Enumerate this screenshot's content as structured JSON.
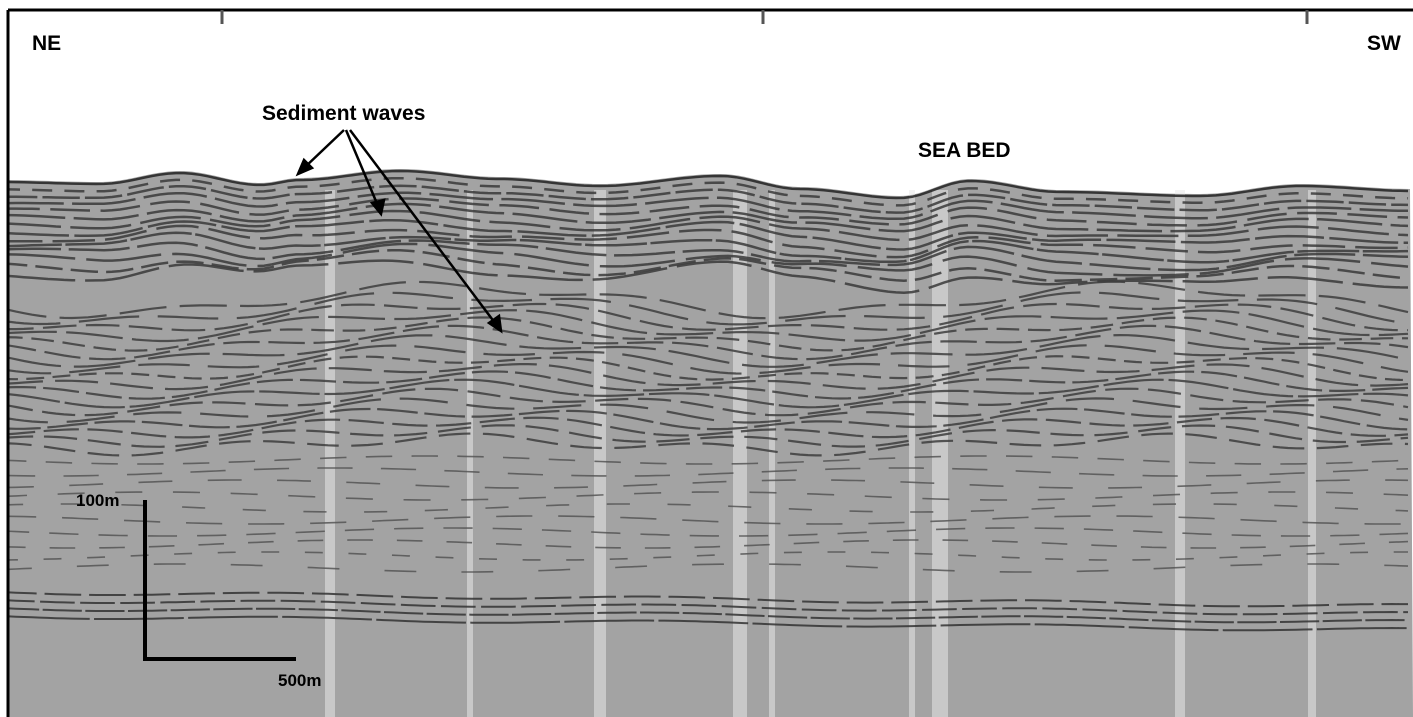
{
  "labels": {
    "left_direction": "NE",
    "right_direction": "SW",
    "sediment_waves": "Sediment waves",
    "sea_bed": "SEA BED",
    "vertical_scale": "100m",
    "horizontal_scale": "500m"
  }
}
